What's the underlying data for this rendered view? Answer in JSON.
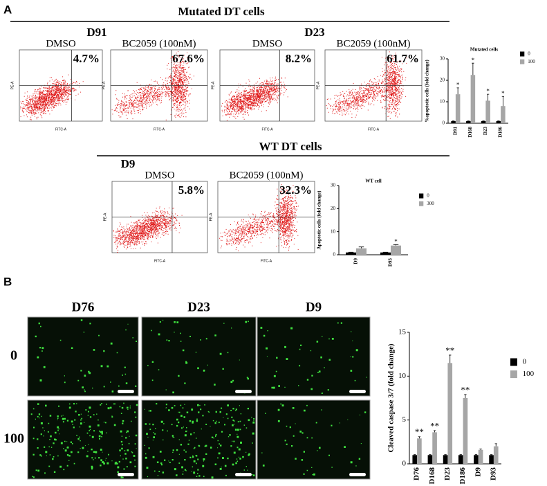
{
  "panel_a": {
    "label": "A",
    "mutated_heading": "Mutated DT cells",
    "wt_heading": "WT DT cells",
    "flow_x_label": "FITC-A",
    "flow_y_label": "PE-A",
    "groups": [
      {
        "name": "D91",
        "plots": [
          {
            "treatment": "DMSO",
            "percent": "4.7%"
          },
          {
            "treatment": "BC2059 (100nM)",
            "percent": "67.6%"
          }
        ]
      },
      {
        "name": "D23",
        "plots": [
          {
            "treatment": "DMSO",
            "percent": "8.2%"
          },
          {
            "treatment": "BC2059 (100nM)",
            "percent": "61.7%"
          }
        ]
      },
      {
        "name": "D9",
        "plots": [
          {
            "treatment": "DMSO",
            "percent": "5.8%"
          },
          {
            "treatment": "BC2059 (100nM)",
            "percent": "32.3%"
          }
        ]
      }
    ]
  },
  "panel_b": {
    "label": "B",
    "columns": [
      "D76",
      "D23",
      "D9"
    ],
    "rows": [
      "0",
      "100"
    ]
  },
  "chart_data": [
    {
      "type": "bar",
      "title": "Mutated cells",
      "ylabel": "%apoptotic cells (fold change)",
      "categories": [
        "D91",
        "D168",
        "D23",
        "D186"
      ],
      "series": [
        {
          "name": "0",
          "color": "#000000",
          "values": [
            1,
            1,
            1,
            1
          ],
          "errors": [
            0.1,
            0.1,
            0.1,
            0.1
          ]
        },
        {
          "name": "100",
          "color": "#a6a6a6",
          "values": [
            13.5,
            22.5,
            10.5,
            8
          ],
          "errors": [
            3,
            5.5,
            3,
            4.5
          ],
          "annotations": [
            "*",
            "*",
            "*",
            "*"
          ]
        }
      ],
      "ylim": [
        0,
        30
      ],
      "yticks": [
        0,
        10,
        20,
        30
      ]
    },
    {
      "type": "bar",
      "title": "WT cell",
      "ylabel": "Apoptotic cells (fold change)",
      "categories": [
        "D9",
        "D93"
      ],
      "series": [
        {
          "name": "0",
          "color": "#000000",
          "values": [
            1,
            1
          ],
          "errors": [
            0.1,
            0.1
          ]
        },
        {
          "name": "300",
          "color": "#a6a6a6",
          "values": [
            2.8,
            4
          ],
          "errors": [
            0.6,
            0.4
          ],
          "annotations": [
            null,
            "*"
          ]
        }
      ],
      "ylim": [
        0,
        30
      ],
      "yticks": [
        0,
        10,
        20,
        30
      ]
    },
    {
      "type": "bar",
      "ylabel": "Cleaved caspase 3/7 (fold change)",
      "categories": [
        "D76",
        "D168",
        "D23",
        "D186",
        "D9",
        "D93"
      ],
      "series": [
        {
          "name": "0",
          "color": "#000000",
          "values": [
            1,
            1,
            1,
            1,
            1,
            1
          ],
          "errors": [
            0.05,
            0.05,
            0.05,
            0.05,
            0.05,
            0.05
          ]
        },
        {
          "name": "100",
          "color": "#a6a6a6",
          "values": [
            2.9,
            3.6,
            11.5,
            7.5,
            1.6,
            2.0
          ],
          "errors": [
            0.2,
            0.2,
            0.9,
            0.4,
            0.1,
            0.3
          ],
          "annotations": [
            "**",
            "**",
            "**",
            "**",
            null,
            null
          ]
        }
      ],
      "ylim": [
        0,
        15
      ],
      "yticks": [
        0,
        5,
        10,
        15
      ]
    }
  ]
}
